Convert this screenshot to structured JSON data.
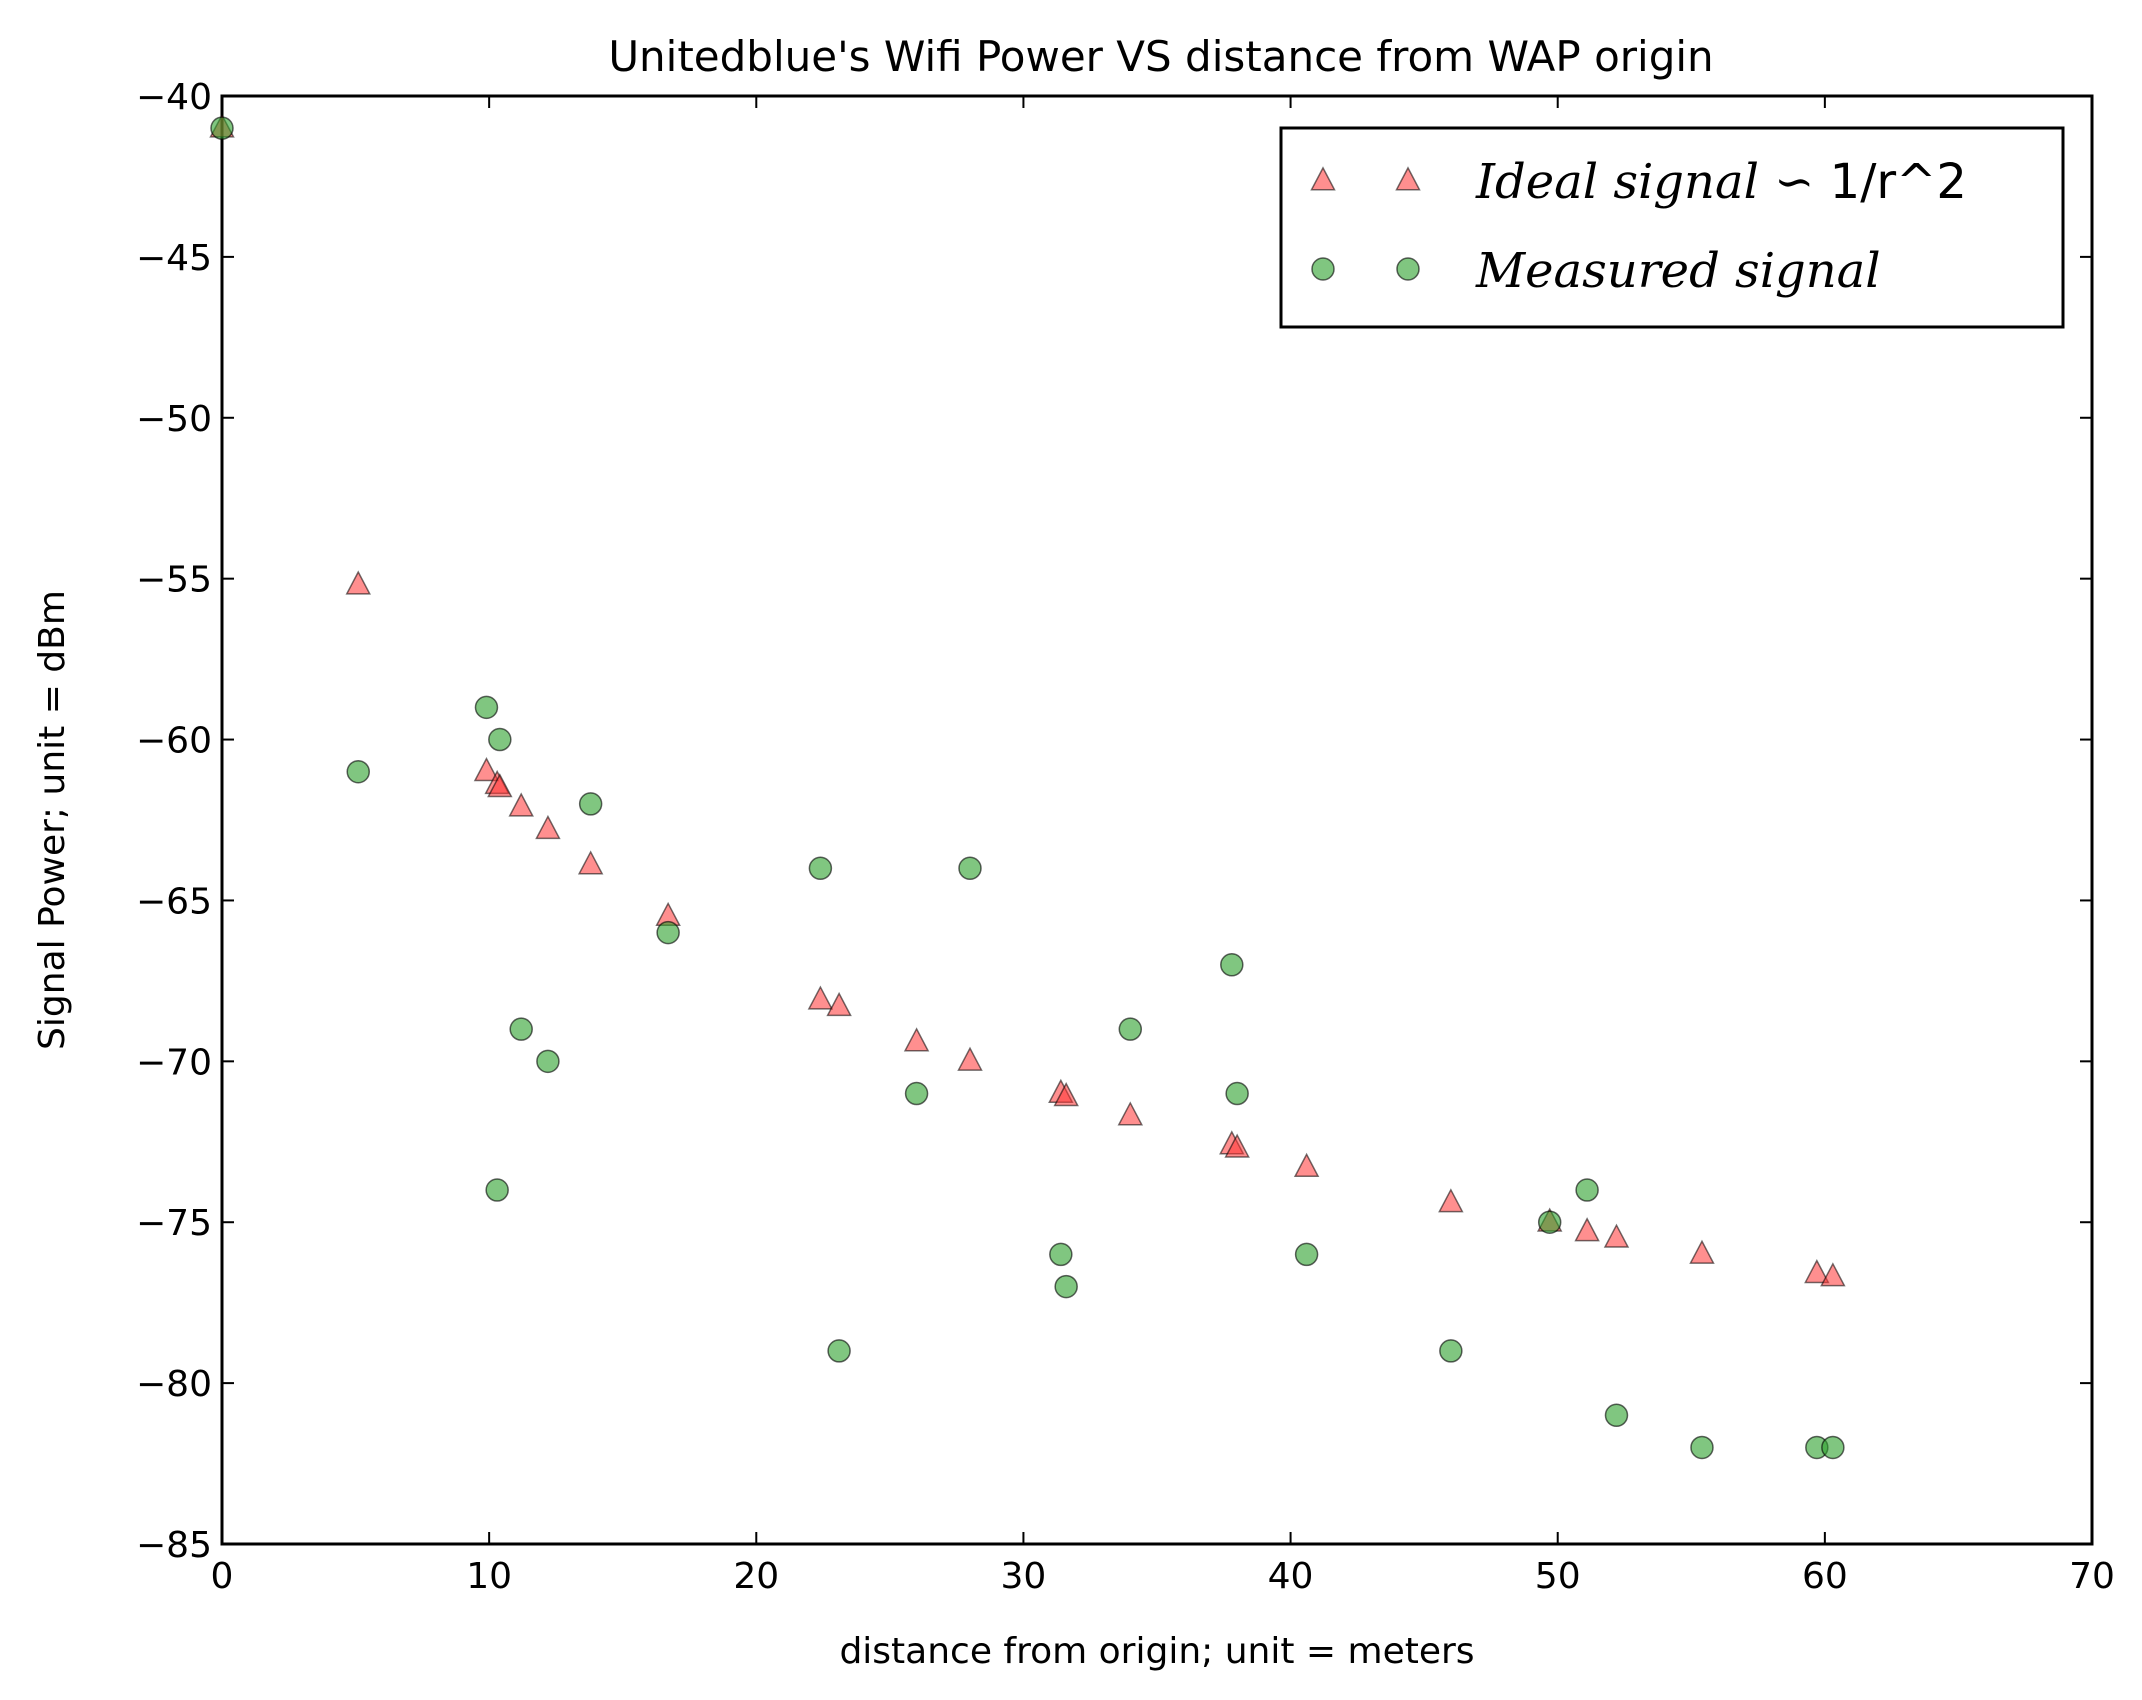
{
  "chart_data": {
    "type": "scatter",
    "title": "Unitedblue's Wifi Power VS distance from WAP origin",
    "xlabel": "distance from origin; unit = meters",
    "ylabel": "Signal Power; unit = dBm",
    "xlim": [
      0,
      70
    ],
    "ylim": [
      -85,
      -40
    ],
    "xticks": [
      0,
      10,
      20,
      30,
      40,
      50,
      60,
      70
    ],
    "yticks": [
      -40,
      -45,
      -50,
      -55,
      -60,
      -65,
      -70,
      -75,
      -80,
      -85
    ],
    "grid": false,
    "legend_position": "top-right",
    "series": [
      {
        "name": "Ideal signal ∽ 1/r^2",
        "marker": "triangle",
        "color": "#ff3333",
        "points": [
          [
            0,
            -41
          ],
          [
            5.1,
            -55.2
          ],
          [
            9.9,
            -61
          ],
          [
            10.3,
            -61.4
          ],
          [
            10.4,
            -61.5
          ],
          [
            11.2,
            -62.1
          ],
          [
            12.2,
            -62.8
          ],
          [
            13.8,
            -63.9
          ],
          [
            16.7,
            -65.5
          ],
          [
            22.4,
            -68.1
          ],
          [
            23.1,
            -68.3
          ],
          [
            26.0,
            -69.4
          ],
          [
            28.0,
            -70.0
          ],
          [
            31.4,
            -71.0
          ],
          [
            31.6,
            -71.1
          ],
          [
            34.0,
            -71.7
          ],
          [
            37.8,
            -72.6
          ],
          [
            38.0,
            -72.7
          ],
          [
            40.6,
            -73.3
          ],
          [
            46.0,
            -74.4
          ],
          [
            49.7,
            -75.0
          ],
          [
            51.1,
            -75.3
          ],
          [
            52.2,
            -75.5
          ],
          [
            55.4,
            -76.0
          ],
          [
            59.7,
            -76.6
          ],
          [
            60.3,
            -76.7
          ]
        ]
      },
      {
        "name": "Measured signal",
        "marker": "circle",
        "color": "#2ca02c",
        "points": [
          [
            0,
            -41
          ],
          [
            5.1,
            -61
          ],
          [
            9.9,
            -59
          ],
          [
            10.3,
            -74
          ],
          [
            10.4,
            -60
          ],
          [
            11.2,
            -69
          ],
          [
            12.2,
            -70
          ],
          [
            13.8,
            -62
          ],
          [
            16.7,
            -66
          ],
          [
            22.4,
            -64
          ],
          [
            23.1,
            -79
          ],
          [
            26.0,
            -71
          ],
          [
            28.0,
            -64
          ],
          [
            31.4,
            -76
          ],
          [
            31.6,
            -77
          ],
          [
            34.0,
            -69
          ],
          [
            37.8,
            -67
          ],
          [
            38.0,
            -71
          ],
          [
            40.6,
            -76
          ],
          [
            46.0,
            -79
          ],
          [
            49.7,
            -75
          ],
          [
            51.1,
            -74
          ],
          [
            52.2,
            -81
          ],
          [
            55.4,
            -82
          ],
          [
            59.7,
            -82
          ],
          [
            60.3,
            -82
          ]
        ]
      }
    ]
  },
  "legend": {
    "ideal_prefix": "Ideal signal ∽ ",
    "ideal_suffix": "1/r^2",
    "measured": "Measured signal"
  }
}
